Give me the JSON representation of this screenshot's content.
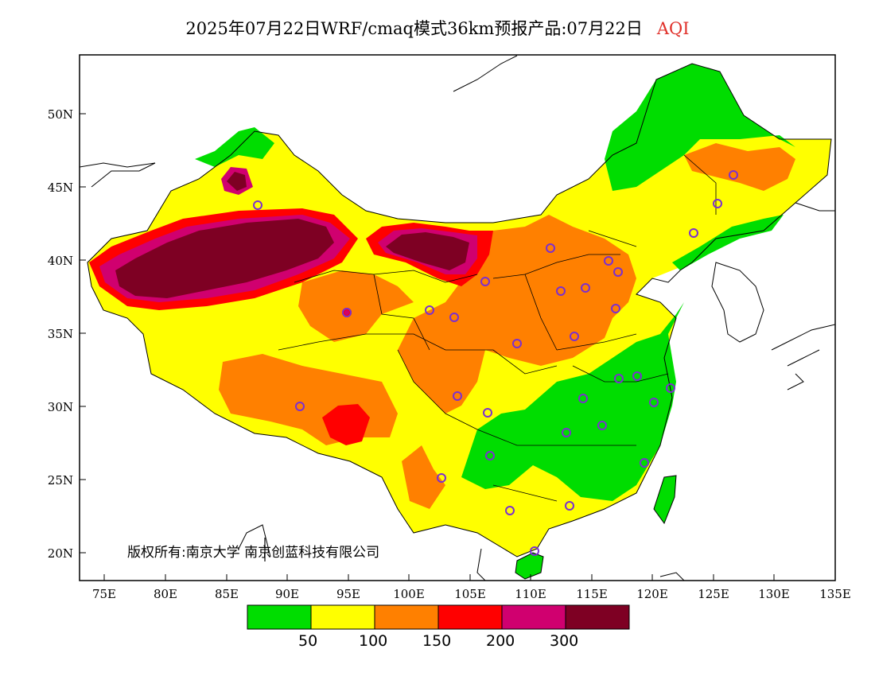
{
  "title": {
    "main": "2025年07月22日WRF/cmaq模式36km预报产品:07月22日",
    "product": "AQI",
    "product_color": "#e0302a"
  },
  "axes": {
    "lat_ticks": [
      "50N",
      "45N",
      "40N",
      "35N",
      "30N",
      "25N",
      "20N"
    ],
    "lon_ticks": [
      "75E",
      "80E",
      "85E",
      "90E",
      "95E",
      "100E",
      "105E",
      "110E",
      "115E",
      "120E",
      "125E",
      "130E",
      "135E"
    ]
  },
  "copyright": "版权所有:南京大学 南京创蓝科技有限公司",
  "colorbar": {
    "colors": [
      "#00dd00",
      "#ffff00",
      "#ff8000",
      "#ff0000",
      "#d0006f",
      "#7e0023"
    ],
    "labels": [
      "50",
      "100",
      "150",
      "200",
      "300"
    ]
  },
  "legend_icons": {
    "city_marker": "circle-icon",
    "city_marker_color": "#7b2fd0"
  }
}
